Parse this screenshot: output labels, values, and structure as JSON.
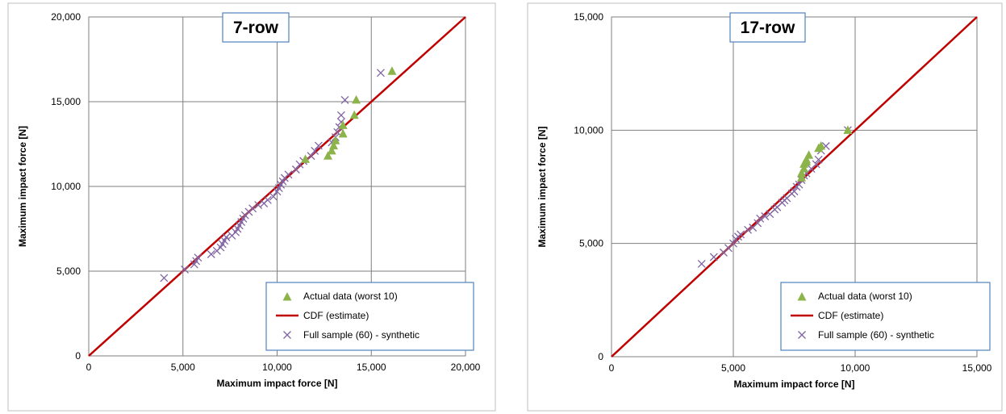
{
  "chart_data": [
    {
      "type": "scatter",
      "title": "7-row",
      "xlabel": "Maximum impact force  [N]",
      "ylabel": "Maximum impact force  [N]",
      "xlim": [
        0,
        20000
      ],
      "ylim": [
        0,
        20000
      ],
      "xticks": [
        "0",
        "5,000",
        "10,000",
        "15,000",
        "20,000"
      ],
      "yticks": [
        "0",
        "5,000",
        "10,000",
        "15,000",
        "20,000"
      ],
      "tick_values": [
        0,
        5000,
        10000,
        15000,
        20000
      ],
      "grid": true,
      "legend_position": "bottom-right",
      "legend": [
        "Actual data (worst 10)",
        "CDF (estimate)",
        "Full sample (60) - synthetic"
      ],
      "colors": {
        "actual": "#8db44a",
        "cdf": "#c00000",
        "synthetic": "#8064a2",
        "grid": "#7f7f7f"
      },
      "series": [
        {
          "name": "Actual data (worst 10)",
          "marker": "triangle",
          "points": [
            [
              11500,
              11600
            ],
            [
              12700,
              11800
            ],
            [
              12900,
              12100
            ],
            [
              13000,
              12400
            ],
            [
              13100,
              12700
            ],
            [
              13500,
              13100
            ],
            [
              13500,
              13600
            ],
            [
              14100,
              14200
            ],
            [
              14200,
              15100
            ],
            [
              16100,
              16800
            ]
          ]
        },
        {
          "name": "CDF (estimate)",
          "marker": "line",
          "points": [
            [
              0,
              0
            ],
            [
              20000,
              20000
            ]
          ]
        },
        {
          "name": "Full sample (60) - synthetic",
          "marker": "x",
          "points": [
            [
              4000,
              4600
            ],
            [
              5100,
              5100
            ],
            [
              5600,
              5400
            ],
            [
              5700,
              5600
            ],
            [
              5800,
              5800
            ],
            [
              6500,
              6000
            ],
            [
              6800,
              6200
            ],
            [
              7000,
              6400
            ],
            [
              7100,
              6600
            ],
            [
              7200,
              6800
            ],
            [
              7300,
              7000
            ],
            [
              7600,
              7100
            ],
            [
              7800,
              7300
            ],
            [
              7900,
              7500
            ],
            [
              8000,
              7700
            ],
            [
              8100,
              7900
            ],
            [
              8200,
              8100
            ],
            [
              8300,
              8300
            ],
            [
              8500,
              8500
            ],
            [
              8700,
              8700
            ],
            [
              9000,
              8900
            ],
            [
              9300,
              9000
            ],
            [
              9500,
              9200
            ],
            [
              9800,
              9400
            ],
            [
              10000,
              9700
            ],
            [
              10100,
              9900
            ],
            [
              10200,
              10100
            ],
            [
              10300,
              10300
            ],
            [
              10400,
              10500
            ],
            [
              10600,
              10700
            ],
            [
              11000,
              11000
            ],
            [
              11200,
              11300
            ],
            [
              11400,
              11500
            ],
            [
              11800,
              11800
            ],
            [
              12000,
              12100
            ],
            [
              12200,
              12400
            ],
            [
              12900,
              12600
            ],
            [
              13100,
              12900
            ],
            [
              13200,
              13200
            ],
            [
              13300,
              13500
            ],
            [
              13400,
              13800
            ],
            [
              13400,
              14200
            ],
            [
              13600,
              15100
            ],
            [
              15500,
              16700
            ]
          ]
        }
      ]
    },
    {
      "type": "scatter",
      "title": "17-row",
      "xlabel": "Maximum impact force  [N]",
      "ylabel": "Maximum impact force  [N]",
      "xlim": [
        0,
        15000
      ],
      "ylim": [
        0,
        15000
      ],
      "xticks": [
        "0",
        "5,000",
        "10,000",
        "15,000"
      ],
      "yticks": [
        "0",
        "5,000",
        "10,000",
        "15,000"
      ],
      "tick_values": [
        0,
        5000,
        10000,
        15000
      ],
      "grid": true,
      "legend_position": "bottom-right",
      "legend": [
        "Actual data (worst 10)",
        "CDF (estimate)",
        "Full sample (60) - synthetic"
      ],
      "colors": {
        "actual": "#8db44a",
        "cdf": "#c00000",
        "synthetic": "#8064a2",
        "grid": "#7f7f7f"
      },
      "series": [
        {
          "name": "Actual data (worst 10)",
          "marker": "triangle",
          "points": [
            [
              7800,
              7900
            ],
            [
              7800,
              8100
            ],
            [
              7900,
              8300
            ],
            [
              7900,
              8500
            ],
            [
              8000,
              8600
            ],
            [
              8000,
              8700
            ],
            [
              8100,
              8900
            ],
            [
              8500,
              9200
            ],
            [
              8600,
              9300
            ],
            [
              9700,
              10000
            ]
          ]
        },
        {
          "name": "CDF (estimate)",
          "marker": "line",
          "points": [
            [
              0,
              0
            ],
            [
              15000,
              15000
            ]
          ]
        },
        {
          "name": "Full sample (60) - synthetic",
          "marker": "x",
          "points": [
            [
              3700,
              4100
            ],
            [
              4200,
              4400
            ],
            [
              4600,
              4600
            ],
            [
              4800,
              4800
            ],
            [
              5000,
              5000
            ],
            [
              5100,
              5200
            ],
            [
              5200,
              5300
            ],
            [
              5300,
              5400
            ],
            [
              5600,
              5600
            ],
            [
              5800,
              5700
            ],
            [
              6000,
              5900
            ],
            [
              6100,
              6100
            ],
            [
              6300,
              6200
            ],
            [
              6500,
              6300
            ],
            [
              6700,
              6500
            ],
            [
              6800,
              6600
            ],
            [
              7000,
              6800
            ],
            [
              7100,
              6900
            ],
            [
              7200,
              7000
            ],
            [
              7400,
              7200
            ],
            [
              7500,
              7300
            ],
            [
              7600,
              7500
            ],
            [
              7700,
              7600
            ],
            [
              7800,
              7800
            ],
            [
              7900,
              8000
            ],
            [
              8000,
              8100
            ],
            [
              8200,
              8300
            ],
            [
              8400,
              8500
            ],
            [
              8500,
              8700
            ],
            [
              8600,
              9100
            ],
            [
              8800,
              9300
            ],
            [
              9700,
              10000
            ]
          ]
        }
      ]
    }
  ]
}
